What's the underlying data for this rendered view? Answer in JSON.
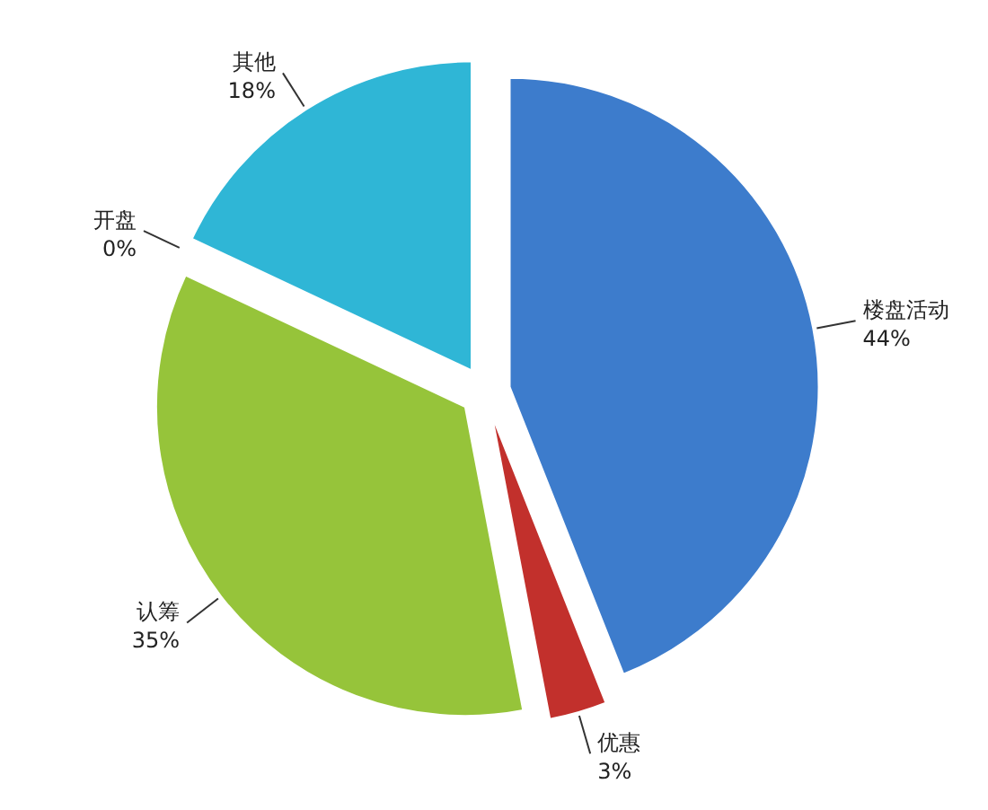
{
  "chart_data": {
    "type": "pie",
    "categories": [
      "楼盘活动",
      "优惠",
      "认筹",
      "开盘",
      "其他"
    ],
    "values": [
      44,
      3,
      35,
      0,
      18
    ],
    "value_labels": [
      "44%",
      "3%",
      "35%",
      "0%",
      "18%"
    ],
    "colors": [
      "#3d7ccc",
      "#c2302c",
      "#96c43a",
      null,
      "#2fb6d6"
    ]
  }
}
